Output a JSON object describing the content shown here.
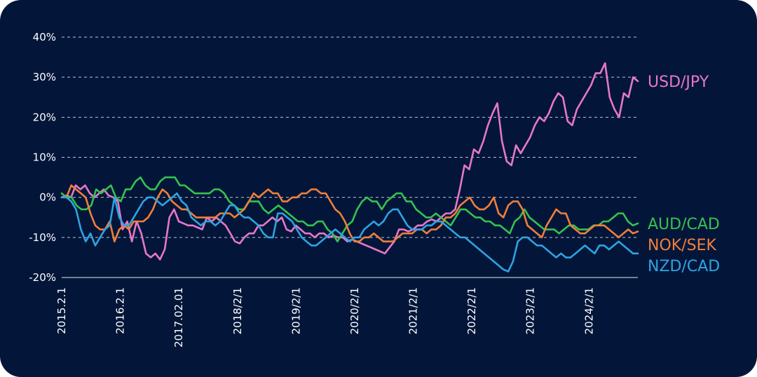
{
  "chart_data": {
    "type": "line",
    "title": "",
    "xlabel": "",
    "ylabel": "",
    "ylim": [
      -20,
      40
    ],
    "yticks": [
      40,
      30,
      20,
      10,
      0,
      -10,
      -20
    ],
    "ytick_labels": [
      "40%",
      "30%",
      "20%",
      "10%",
      "0%",
      "-10%",
      "-20%"
    ],
    "x_start": "2015.2.1",
    "x_end": "2024.12.1",
    "xticks": [
      "2015.2.1",
      "2016.2.1",
      "2017.02.01",
      "2018/2/1",
      "2019/2/1",
      "2020/2/1",
      "2021/2/1",
      "2022/2/1",
      "2023/2/1",
      "2024/2/1"
    ],
    "grid": "horizontal-dashed",
    "legend": "right",
    "series": [
      {
        "name": "USD/JPY",
        "color": "#e877c9",
        "values": [
          0,
          0.5,
          0,
          3,
          2,
          3,
          1,
          0,
          1,
          2,
          0.5,
          0,
          -1,
          -8,
          -6,
          -11,
          -6,
          -9,
          -14,
          -15,
          -14,
          -15.5,
          -13,
          -5,
          -3,
          -6,
          -6.5,
          -7,
          -7,
          -7.5,
          -8,
          -5,
          -6,
          -5,
          -6,
          -7,
          -9,
          -11,
          -11.5,
          -10,
          -9,
          -9,
          -7,
          -7,
          -6,
          -5,
          -6,
          -5,
          -8,
          -8.5,
          -7,
          -8,
          -9,
          -9,
          -10,
          -9,
          -9,
          -10,
          -9.5,
          -10,
          -10,
          -11,
          -10.5,
          -11,
          -11.5,
          -12,
          -12.5,
          -13,
          -13.5,
          -14,
          -12.5,
          -11,
          -8,
          -8,
          -8.5,
          -8,
          -7,
          -7,
          -6,
          -5.5,
          -6,
          -5,
          -4,
          -4,
          -3,
          2,
          8,
          7,
          12,
          11,
          14,
          18,
          21,
          23.5,
          14,
          9,
          8,
          13,
          11,
          13,
          15,
          18,
          20,
          19,
          21,
          24,
          26,
          25,
          19,
          18,
          22,
          24,
          26,
          28,
          31,
          31,
          33.5,
          25,
          22,
          20,
          26,
          25,
          30,
          29
        ]
      },
      {
        "name": "AUD/CAD",
        "color": "#36c24f",
        "values": [
          1,
          0,
          0,
          -2,
          -3,
          -3,
          -2,
          2,
          1,
          2,
          3,
          0,
          -1,
          2,
          2,
          4,
          5,
          3,
          2,
          2,
          4,
          5,
          5,
          5,
          3,
          3,
          2,
          1,
          1,
          1,
          1,
          2,
          2,
          1,
          -1,
          -2,
          -3,
          -3,
          -1,
          -1,
          -1,
          -3,
          -4,
          -3,
          -2,
          -3,
          -4,
          -5,
          -6,
          -6,
          -7,
          -7,
          -6,
          -6,
          -8,
          -9,
          -11,
          -9,
          -7,
          -6,
          -3,
          -1,
          0,
          -1,
          -1,
          -3,
          -1,
          0,
          1,
          1,
          -1,
          -1,
          -3,
          -4,
          -5,
          -5,
          -4,
          -5,
          -6,
          -7,
          -5,
          -3,
          -3,
          -4,
          -5,
          -5,
          -6,
          -6,
          -7,
          -7,
          -8,
          -9,
          -6,
          -5,
          -3,
          -5,
          -6,
          -7,
          -8,
          -8,
          -8,
          -9,
          -8,
          -7,
          -7,
          -8,
          -8,
          -8,
          -7,
          -7,
          -6,
          -6,
          -5,
          -4,
          -4,
          -6,
          -7,
          -6.5
        ]
      },
      {
        "name": "NOK/SEK",
        "color": "#f07f3a",
        "values": [
          0,
          0,
          3,
          2,
          1,
          0,
          -4,
          -7,
          -8,
          -8,
          -6,
          -11,
          -8,
          -7,
          -8,
          -6,
          -6,
          -6,
          -5,
          -3,
          0,
          2,
          1,
          -1,
          -2,
          -3,
          -3,
          -4,
          -5,
          -5,
          -5,
          -5,
          -5,
          -4,
          -4,
          -4,
          -5,
          -4,
          -3,
          -1,
          1,
          0,
          1,
          2,
          1,
          1,
          -1,
          -1,
          0,
          0,
          1,
          1,
          2,
          2,
          1,
          1,
          -1,
          -3,
          -4,
          -6,
          -9,
          -11,
          -11,
          -10,
          -10,
          -9,
          -10,
          -11,
          -11,
          -11,
          -10,
          -9,
          -9,
          -9,
          -8,
          -8,
          -9,
          -8,
          -8,
          -7,
          -5,
          -5,
          -4,
          -2,
          -1,
          0,
          -2,
          -3,
          -3,
          -2,
          0,
          -4,
          -5,
          -2,
          -1,
          -1,
          -3,
          -7,
          -8,
          -9,
          -10,
          -7,
          -5,
          -3,
          -4,
          -4,
          -7,
          -8,
          -9,
          -9,
          -8,
          -7,
          -7,
          -7,
          -8,
          -9,
          -10,
          -9,
          -8,
          -9,
          -8.5
        ]
      },
      {
        "name": "NZD/CAD",
        "color": "#2fa3e0",
        "values": [
          0,
          0,
          -1,
          -3,
          -8,
          -11,
          -9,
          -12,
          -10,
          -8,
          -7,
          0,
          -5,
          -7,
          -7,
          -5,
          -3,
          -1,
          0,
          0,
          -1,
          -2,
          -1,
          0,
          1,
          -1,
          -2,
          -5,
          -6,
          -7,
          -6,
          -6,
          -7,
          -6,
          -4,
          -2,
          -2,
          -4,
          -5,
          -5,
          -6,
          -7,
          -9,
          -10,
          -10,
          -4,
          -4,
          -5,
          -6,
          -8,
          -10,
          -11,
          -12,
          -12,
          -11,
          -10,
          -9,
          -8,
          -9,
          -10,
          -11,
          -10,
          -10,
          -8,
          -7,
          -6,
          -7,
          -6,
          -4,
          -3,
          -3,
          -5,
          -7,
          -8,
          -8,
          -8,
          -7,
          -7,
          -6,
          -6,
          -7,
          -8,
          -9,
          -10,
          -10,
          -11,
          -12,
          -13,
          -14,
          -15,
          -16,
          -17,
          -18,
          -18.5,
          -16,
          -11,
          -10,
          -10,
          -11,
          -12,
          -12,
          -13,
          -14,
          -15,
          -14,
          -15,
          -15,
          -14,
          -13,
          -12,
          -13,
          -14,
          -12,
          -12,
          -13,
          -12,
          -11,
          -12,
          -13,
          -14,
          -14
        ]
      }
    ]
  }
}
